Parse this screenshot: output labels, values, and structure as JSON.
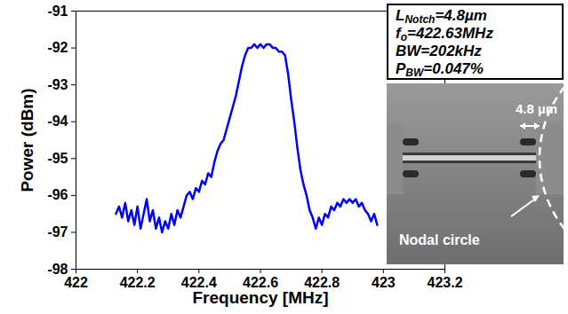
{
  "chart_data": {
    "type": "line",
    "xlabel": "Frequency [MHz]",
    "ylabel": "Power (dBm)",
    "xlim": [
      422,
      423.2
    ],
    "ylim": [
      -98,
      -91
    ],
    "xticks": [
      422,
      422.2,
      422.4,
      422.6,
      422.8,
      423,
      423.2
    ],
    "yticks": [
      -98,
      -97,
      -96,
      -95,
      -94,
      -93,
      -92,
      -91
    ],
    "grid": false,
    "color": "#0000ff",
    "x": [
      422.13,
      422.14,
      422.15,
      422.16,
      422.17,
      422.18,
      422.19,
      422.2,
      422.21,
      422.22,
      422.23,
      422.24,
      422.25,
      422.26,
      422.27,
      422.28,
      422.29,
      422.3,
      422.31,
      422.32,
      422.33,
      422.34,
      422.35,
      422.36,
      422.37,
      422.38,
      422.39,
      422.4,
      422.41,
      422.42,
      422.43,
      422.44,
      422.45,
      422.46,
      422.47,
      422.48,
      422.49,
      422.5,
      422.51,
      422.52,
      422.53,
      422.54,
      422.55,
      422.56,
      422.57,
      422.58,
      422.59,
      422.6,
      422.61,
      422.62,
      422.63,
      422.64,
      422.65,
      422.66,
      422.67,
      422.68,
      422.69,
      422.7,
      422.71,
      422.72,
      422.73,
      422.74,
      422.75,
      422.76,
      422.77,
      422.78,
      422.79,
      422.8,
      422.81,
      422.82,
      422.83,
      422.84,
      422.85,
      422.86,
      422.87,
      422.88,
      422.89,
      422.9,
      422.91,
      422.92,
      422.93,
      422.94,
      422.95,
      422.96,
      422.97,
      422.98
    ],
    "values": [
      -96.5,
      -96.3,
      -96.6,
      -96.2,
      -96.7,
      -96.4,
      -96.8,
      -96.3,
      -96.9,
      -96.5,
      -96.1,
      -96.7,
      -96.4,
      -96.9,
      -96.6,
      -97.0,
      -96.7,
      -96.9,
      -96.5,
      -96.8,
      -96.4,
      -96.6,
      -96.3,
      -96.0,
      -95.9,
      -96.1,
      -95.8,
      -95.9,
      -95.6,
      -95.7,
      -95.4,
      -95.5,
      -95.1,
      -94.8,
      -94.6,
      -94.5,
      -94.2,
      -93.9,
      -93.6,
      -93.3,
      -92.9,
      -92.5,
      -92.2,
      -92.0,
      -92.0,
      -91.9,
      -92.0,
      -91.9,
      -92.0,
      -91.9,
      -91.9,
      -92.0,
      -92.0,
      -92.1,
      -92.1,
      -92.2,
      -92.7,
      -93.4,
      -94.0,
      -94.7,
      -95.3,
      -95.7,
      -96.0,
      -96.4,
      -96.6,
      -96.9,
      -96.6,
      -96.8,
      -96.5,
      -96.6,
      -96.3,
      -96.4,
      -96.2,
      -96.3,
      -96.1,
      -96.2,
      -96.1,
      -96.2,
      -96.1,
      -96.3,
      -96.2,
      -96.4,
      -96.5,
      -96.7,
      -96.5,
      -96.8
    ],
    "annotations": [
      {
        "main": "L",
        "sub": "Notch",
        "rest": "=4.8µm"
      },
      {
        "main": "f",
        "sub": "o",
        "rest": "=422.63MHz"
      },
      {
        "main": "BW",
        "sub": "",
        "rest": "=202kHz"
      },
      {
        "main": "P",
        "sub": "BW",
        "rest": "=0.047%"
      }
    ],
    "inset": {
      "dimension_label": "4.8 µm",
      "label": "Nodal circle"
    }
  }
}
